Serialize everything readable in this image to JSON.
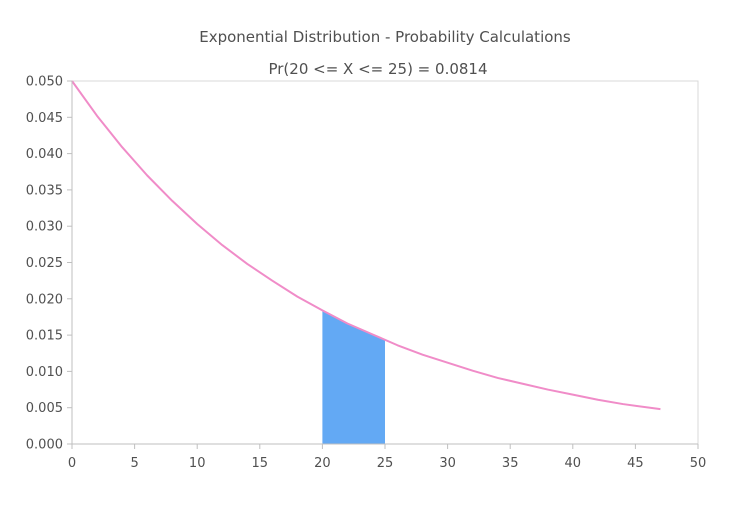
{
  "chart_data": {
    "type": "area",
    "title": "Exponential Distribution - Probability Calculations",
    "subtitle": "Pr(20 <= X <= 25) = 0.0814",
    "xlabel": "",
    "ylabel": "",
    "xlim": [
      0,
      50
    ],
    "ylim": [
      0,
      0.05
    ],
    "x_ticks": [
      "0",
      "5",
      "10",
      "15",
      "20",
      "25",
      "30",
      "35",
      "40",
      "45",
      "50"
    ],
    "y_ticks": [
      "0.000",
      "0.005",
      "0.010",
      "0.015",
      "0.020",
      "0.025",
      "0.030",
      "0.035",
      "0.040",
      "0.045",
      "0.050"
    ],
    "grid": false,
    "series": [
      {
        "type": "line",
        "color": "#f08cc8",
        "x": [
          0,
          2,
          4,
          6,
          8,
          10,
          12,
          14,
          16,
          18,
          20,
          22,
          24,
          26,
          28,
          30,
          32,
          34,
          36,
          38,
          40,
          42,
          44,
          47
        ],
        "y": [
          0.05,
          0.0452,
          0.0409,
          0.037,
          0.0335,
          0.0303,
          0.0274,
          0.0248,
          0.0225,
          0.0203,
          0.0184,
          0.0166,
          0.0151,
          0.0136,
          0.0123,
          0.0112,
          0.0101,
          0.0091,
          0.0083,
          0.0075,
          0.0068,
          0.0061,
          0.0055,
          0.0048
        ]
      },
      {
        "type": "area",
        "color": "#63a9f4",
        "x": [
          20,
          21,
          22,
          23,
          24,
          25
        ],
        "y": [
          0.0184,
          0.0175,
          0.0166,
          0.0158,
          0.0151,
          0.0143
        ]
      }
    ]
  }
}
